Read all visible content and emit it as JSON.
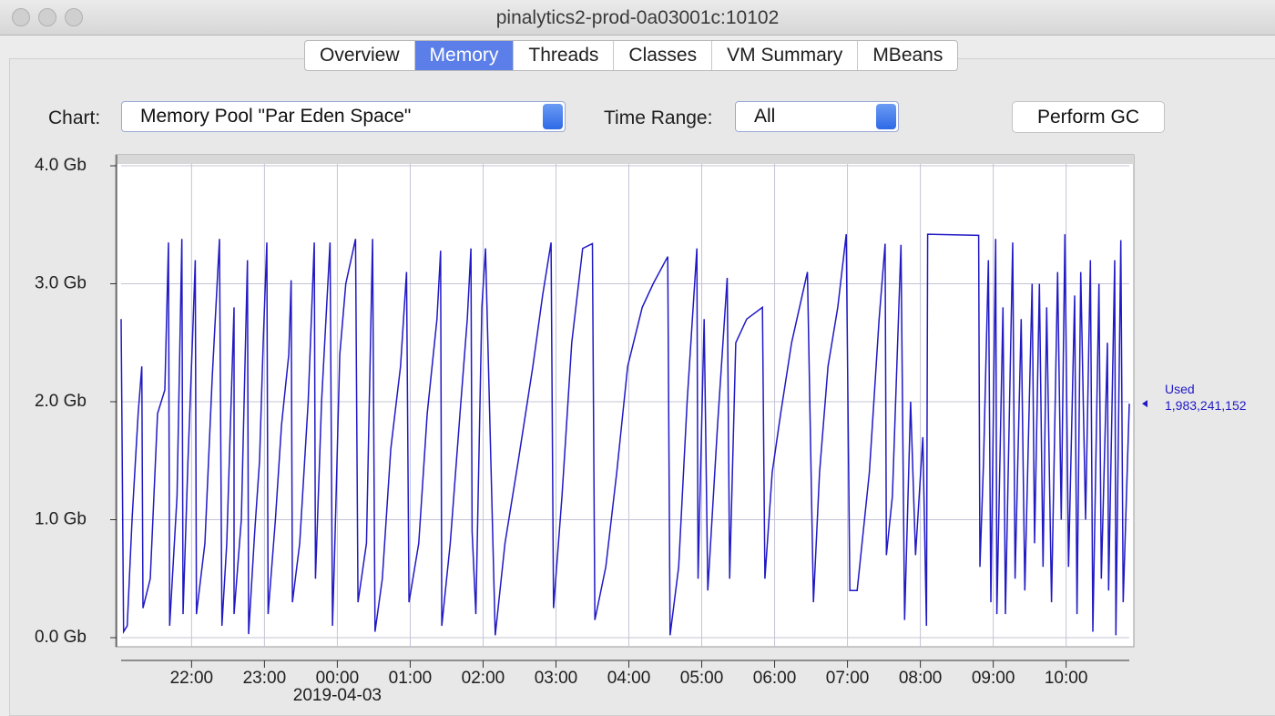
{
  "window": {
    "title": "pinalytics2-prod-0a03001c:10102"
  },
  "tabs": [
    {
      "label": "Overview",
      "selected": false
    },
    {
      "label": "Memory",
      "selected": true
    },
    {
      "label": "Threads",
      "selected": false
    },
    {
      "label": "Classes",
      "selected": false
    },
    {
      "label": "VM Summary",
      "selected": false
    },
    {
      "label": "MBeans",
      "selected": false
    }
  ],
  "controls": {
    "chart_label": "Chart:",
    "chart_value": "Memory Pool \"Par Eden Space\"",
    "time_range_label": "Time Range:",
    "time_range_value": "All",
    "button": "Perform GC"
  },
  "chart_data": {
    "type": "line",
    "grid": true,
    "ylim": [
      0,
      4
    ],
    "yticks": [
      {
        "value": 0,
        "label": "0.0 Gb"
      },
      {
        "value": 1,
        "label": "1.0 Gb"
      },
      {
        "value": 2,
        "label": "2.0 Gb"
      },
      {
        "value": 3,
        "label": "3.0 Gb"
      },
      {
        "value": 4,
        "label": "4.0 Gb"
      }
    ],
    "xlim": [
      "21:02",
      "10:52"
    ],
    "xticks": [
      "22:00",
      "23:00",
      "00:00",
      "01:00",
      "02:00",
      "03:00",
      "04:00",
      "05:00",
      "06:00",
      "07:00",
      "08:00",
      "09:00",
      "10:00"
    ],
    "x_date_label": "2019-04-03",
    "x": [
      "21:02",
      "21:04",
      "21:07",
      "21:11",
      "21:16",
      "21:19",
      "21:20",
      "21:26",
      "21:32",
      "21:38",
      "21:41",
      "21:42",
      "21:48",
      "21:52",
      "21:53",
      "21:57",
      "22:01",
      "22:03",
      "22:04",
      "22:11",
      "22:17",
      "22:23",
      "22:25",
      "22:29",
      "22:35",
      "22:35",
      "22:41",
      "22:46",
      "22:47",
      "22:52",
      "22:56",
      "22:59",
      "23:02",
      "23:03",
      "23:09",
      "23:14",
      "23:20",
      "23:22",
      "23:23",
      "23:29",
      "23:36",
      "23:41",
      "23:42",
      "23:47",
      "23:54",
      "23:56",
      "23:58",
      "00:02",
      "00:07",
      "00:15",
      "00:17",
      "00:24",
      "00:29",
      "00:31",
      "00:37",
      "00:44",
      "00:52",
      "00:57",
      "00:59",
      "01:07",
      "01:14",
      "01:22",
      "01:25",
      "01:26",
      "01:33",
      "01:41",
      "01:47",
      "01:50",
      "01:51",
      "01:54",
      "01:59",
      "02:02",
      "02:10",
      "02:18",
      "02:29",
      "02:41",
      "02:49",
      "02:56",
      "02:58",
      "03:05",
      "03:13",
      "03:22",
      "03:30",
      "03:32",
      "03:41",
      "03:50",
      "03:59",
      "04:11",
      "04:20",
      "04:32",
      "04:34",
      "04:41",
      "04:48",
      "04:56",
      "04:57",
      "05:02",
      "05:05",
      "05:13",
      "05:21",
      "05:23",
      "05:28",
      "05:37",
      "05:50",
      "05:52",
      "05:58",
      "06:05",
      "06:14",
      "06:27",
      "06:32",
      "06:37",
      "06:44",
      "06:52",
      "06:59",
      "07:02",
      "07:08",
      "07:18",
      "07:26",
      "07:31",
      "07:32",
      "07:37",
      "07:44",
      "07:47",
      "07:52",
      "07:56",
      "08:02",
      "08:05",
      "08:06",
      "08:48",
      "08:49",
      "08:52",
      "08:56",
      "08:58",
      "09:02",
      "09:03",
      "09:08",
      "09:10",
      "09:16",
      "09:18",
      "09:23",
      "09:26",
      "09:32",
      "09:34",
      "09:38",
      "09:41",
      "09:44",
      "09:48",
      "09:53",
      "09:56",
      "09:59",
      "10:02",
      "10:07",
      "10:09",
      "10:12",
      "10:16",
      "10:20",
      "10:22",
      "10:27",
      "10:29",
      "10:34",
      "10:35",
      "10:40",
      "10:41",
      "10:45",
      "10:47",
      "10:52"
    ],
    "series": [
      {
        "name": "Used",
        "color": "#2019c4",
        "current_label": "1,983,241,152",
        "values": [
          2.7,
          0.05,
          0.1,
          1.0,
          1.9,
          2.3,
          0.25,
          0.5,
          1.9,
          2.1,
          3.35,
          0.1,
          1.2,
          3.38,
          0.2,
          1.5,
          2.6,
          3.2,
          0.2,
          0.8,
          2.2,
          3.38,
          0.1,
          0.8,
          2.8,
          0.2,
          1.0,
          3.2,
          0.03,
          0.9,
          1.5,
          2.5,
          3.35,
          0.2,
          1.0,
          1.8,
          2.4,
          3.03,
          0.3,
          0.8,
          2.0,
          3.35,
          0.5,
          2.0,
          3.35,
          0.1,
          0.8,
          2.4,
          3.0,
          3.38,
          0.3,
          0.8,
          3.38,
          0.05,
          0.5,
          1.6,
          2.3,
          3.1,
          0.3,
          0.8,
          1.9,
          2.7,
          3.28,
          0.1,
          0.8,
          1.9,
          2.7,
          3.3,
          0.9,
          0.2,
          2.8,
          3.3,
          0.02,
          0.8,
          1.5,
          2.3,
          2.9,
          3.35,
          0.25,
          1.2,
          2.5,
          3.3,
          3.34,
          0.15,
          0.6,
          1.4,
          2.3,
          2.8,
          3.0,
          3.23,
          0.02,
          0.6,
          2.0,
          3.3,
          0.5,
          2.7,
          0.4,
          1.8,
          3.05,
          0.5,
          2.5,
          2.7,
          2.8,
          0.5,
          1.4,
          1.9,
          2.5,
          3.1,
          0.3,
          1.4,
          2.3,
          2.8,
          3.42,
          0.4,
          0.4,
          1.4,
          2.7,
          3.34,
          0.7,
          1.2,
          3.33,
          0.15,
          2.0,
          0.7,
          1.7,
          0.1,
          3.42,
          3.41,
          0.6,
          1.5,
          3.2,
          0.3,
          3.38,
          0.2,
          2.8,
          0.2,
          3.35,
          0.5,
          2.7,
          0.4,
          3.0,
          0.8,
          3.0,
          0.6,
          2.8,
          0.3,
          3.1,
          1.0,
          3.42,
          0.6,
          2.9,
          0.2,
          3.1,
          1.0,
          3.2,
          0.05,
          3.0,
          0.5,
          2.5,
          0.4,
          3.2,
          0.02,
          3.37,
          0.3,
          1.983241152
        ]
      }
    ]
  }
}
